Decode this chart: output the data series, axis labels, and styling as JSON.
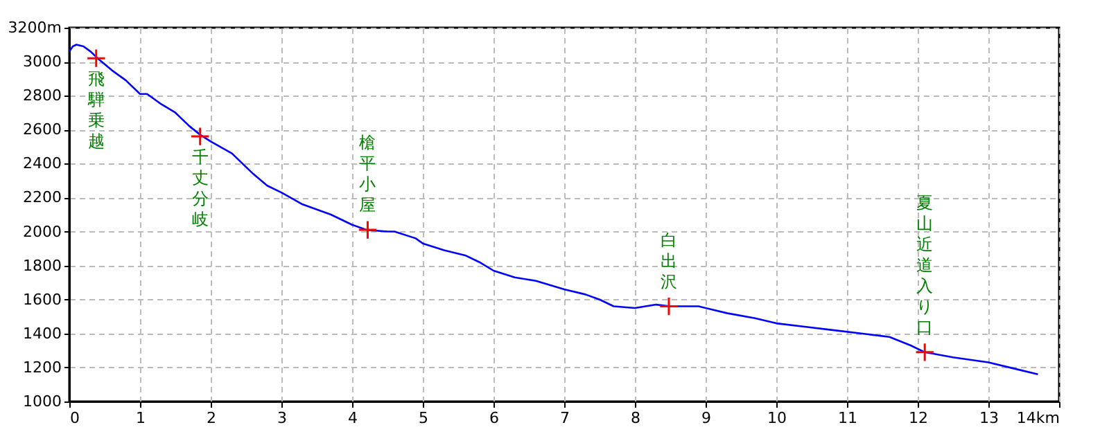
{
  "chart_data": {
    "type": "line",
    "xlim": [
      0,
      14
    ],
    "xticks": [
      0,
      1,
      2,
      3,
      4,
      5,
      6,
      7,
      8,
      9,
      10,
      11,
      12,
      13,
      {
        "value": 14,
        "label": "14km"
      }
    ],
    "ylim": [
      1000,
      3200
    ],
    "yticks": [
      1000,
      1200,
      1400,
      1600,
      1800,
      2000,
      2200,
      2400,
      2600,
      2800,
      3000,
      {
        "value": 3200,
        "label": "3200m"
      }
    ],
    "grid": true,
    "series": [
      {
        "color": "#0000ff",
        "marker": "none",
        "x": [
          0,
          0.05,
          0.1,
          0.2,
          0.3,
          0.4,
          0.6,
          0.8,
          1.0,
          1.1,
          1.3,
          1.5,
          1.7,
          1.85,
          2.0,
          2.3,
          2.6,
          2.8,
          3.0,
          3.3,
          3.7,
          4.0,
          4.2,
          4.5,
          4.6,
          4.9,
          5.0,
          5.3,
          5.6,
          5.8,
          6.0,
          6.3,
          6.6,
          7.0,
          7.3,
          7.5,
          7.7,
          8.0,
          8.3,
          8.5,
          8.9,
          9.3,
          9.7,
          10.0,
          10.4,
          10.8,
          11.2,
          11.6,
          11.9,
          12.1,
          12.5,
          13.0,
          13.4,
          13.7
        ],
        "values": [
          3060,
          3090,
          3100,
          3090,
          3060,
          3020,
          2950,
          2890,
          2810,
          2810,
          2750,
          2700,
          2620,
          2570,
          2530,
          2460,
          2340,
          2270,
          2230,
          2160,
          2100,
          2040,
          2010,
          2000,
          2000,
          1960,
          1930,
          1890,
          1860,
          1820,
          1770,
          1730,
          1710,
          1660,
          1630,
          1600,
          1560,
          1550,
          1570,
          1560,
          1560,
          1520,
          1490,
          1460,
          1440,
          1420,
          1400,
          1380,
          1330,
          1290,
          1260,
          1230,
          1190,
          1160
        ]
      },
      {
        "type": "scatter",
        "color": "#ff0000",
        "marker": "cross",
        "x": [
          0.38,
          1.85,
          4.22,
          8.48,
          12.1
        ],
        "values": [
          3020,
          2560,
          2010,
          1560,
          1290
        ]
      }
    ],
    "annotations": [
      {
        "text": "飛騨乗越",
        "x": 0.38,
        "y": 3020
      },
      {
        "text": "千丈分岐",
        "x": 1.85,
        "y": 2560
      },
      {
        "text": "槍平小屋",
        "x": 4.22,
        "y": 2010
      },
      {
        "text": "白出沢",
        "x": 8.48,
        "y": 1560
      },
      {
        "text": "夏山近道入り口",
        "x": 12.1,
        "y": 1290
      }
    ]
  }
}
